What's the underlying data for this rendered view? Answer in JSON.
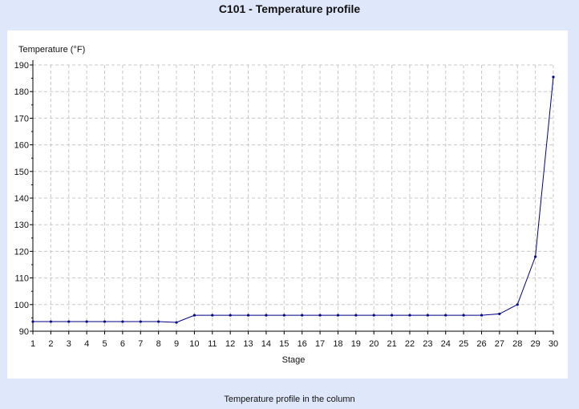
{
  "chart_data": {
    "type": "line",
    "title": "C101 - Temperature profile",
    "caption": "Temperature profile in the column",
    "xlabel": "Stage",
    "ylabel": "Temperature (°F)",
    "xlim": [
      1,
      30
    ],
    "ylim": [
      90,
      190
    ],
    "y_ticks": [
      90,
      100,
      110,
      120,
      130,
      140,
      150,
      160,
      170,
      180,
      190
    ],
    "grid": true,
    "colors": {
      "line": "#000080",
      "grid": "#c8c8c8",
      "background": "#dfe8fb"
    },
    "series": [
      {
        "x": [
          1,
          2,
          3,
          4,
          5,
          6,
          7,
          8,
          9,
          10,
          11,
          12,
          13,
          14,
          15,
          16,
          17,
          18,
          19,
          20,
          21,
          22,
          23,
          24,
          25,
          26,
          27,
          28,
          29,
          30
        ],
        "values": [
          93.6,
          93.6,
          93.6,
          93.6,
          93.6,
          93.6,
          93.6,
          93.6,
          93.3,
          96.0,
          96.0,
          96.0,
          96.0,
          96.0,
          96.0,
          96.0,
          96.0,
          96.0,
          96.0,
          96.0,
          96.0,
          96.0,
          96.0,
          96.0,
          96.0,
          96.0,
          96.5,
          100.0,
          118.0,
          185.5
        ]
      }
    ]
  }
}
